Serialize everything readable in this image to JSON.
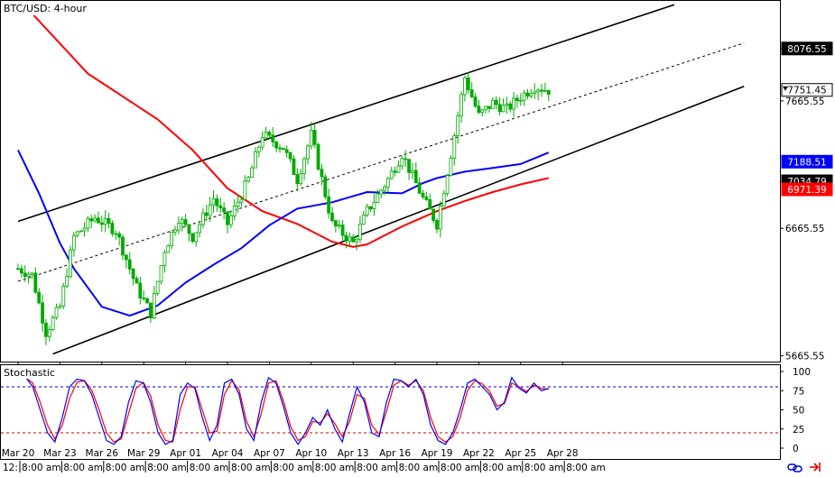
{
  "title": "BTC/USD: 4-hour",
  "indicator_title": "Stochastic",
  "footer": {
    "left_stub": "12:",
    "time_labels": [
      "8:00 am",
      "8:00 am",
      "8:00 am",
      "8:00 am",
      "8:00 am",
      "8:00 am",
      "8:00 am",
      "8:00 am",
      "8:00 am",
      "8:00 am",
      "8:00 am",
      "8:00 am",
      "8:00 am",
      "8:00 am"
    ]
  },
  "colors": {
    "candle": "#00aa00",
    "ma_red": "#ff0000",
    "ma_blue": "#0000ff",
    "channel": "#000000",
    "stoch_k": "#0000ff",
    "stoch_d": "#ff0000",
    "level_high": "#0000cc",
    "level_low": "#cc0000",
    "tag_dark": "#000000",
    "tag_blue": "#0000ff",
    "tag_red": "#ff0000"
  },
  "icons": [
    "link-icon",
    "arrow-to-end-icon"
  ],
  "chart_data": {
    "type": "candlestick",
    "symbol": "BTC/USD",
    "timeframe": "4-hour",
    "x_labels": [
      "Mar 20",
      "Mar 23",
      "Mar 26",
      "Mar 29",
      "Apr 01",
      "Apr 04",
      "Apr 07",
      "Apr 10",
      "Apr 13",
      "Apr 16",
      "Apr 19",
      "Apr 22",
      "Apr 25",
      "Apr 28"
    ],
    "y_ticks": [
      "8076.55",
      "7665.55",
      "6665.55",
      "5665.55"
    ],
    "ylim": [
      5620,
      8450
    ],
    "price_tags": [
      {
        "value": 8076.55,
        "text": "8076.55",
        "style": "dark"
      },
      {
        "value": 7751.45,
        "text": "7751.45",
        "style": "last"
      },
      {
        "value": 7188.51,
        "text": "7188.51",
        "style": "blue"
      },
      {
        "value": 7034.79,
        "text": "7034.79",
        "style": "dark"
      },
      {
        "value": 6971.39,
        "text": "6971.39",
        "style": "red"
      }
    ],
    "price_path": [
      [
        0,
        6350
      ],
      [
        2,
        6300
      ],
      [
        4,
        5850
      ],
      [
        6,
        6050
      ],
      [
        8,
        6600
      ],
      [
        11,
        6750
      ],
      [
        14,
        6650
      ],
      [
        17,
        6200
      ],
      [
        19,
        6000
      ],
      [
        21,
        6500
      ],
      [
        23,
        6750
      ],
      [
        25,
        6600
      ],
      [
        28,
        6900
      ],
      [
        30,
        6700
      ],
      [
        33,
        7050
      ],
      [
        35,
        7400
      ],
      [
        38,
        7300
      ],
      [
        40,
        7050
      ],
      [
        42,
        7400
      ],
      [
        45,
        6700
      ],
      [
        48,
        6550
      ],
      [
        50,
        6800
      ],
      [
        53,
        7050
      ],
      [
        55,
        7250
      ],
      [
        58,
        6900
      ],
      [
        60,
        6700
      ],
      [
        62,
        7250
      ],
      [
        64,
        7850
      ],
      [
        66,
        7550
      ],
      [
        68,
        7650
      ],
      [
        70,
        7600
      ],
      [
        72,
        7700
      ],
      [
        74,
        7780
      ],
      [
        76,
        7750
      ]
    ],
    "series": [
      {
        "name": "",
        "color": "red",
        "points": [
          [
            0,
            8470
          ],
          [
            10,
            7880
          ],
          [
            20,
            7520
          ],
          [
            25,
            7280
          ],
          [
            30,
            6980
          ],
          [
            35,
            6800
          ],
          [
            40,
            6700
          ],
          [
            45,
            6560
          ],
          [
            48,
            6520
          ],
          [
            50,
            6540
          ],
          [
            55,
            6680
          ],
          [
            60,
            6800
          ],
          [
            64,
            6880
          ],
          [
            68,
            6950
          ],
          [
            72,
            7010
          ],
          [
            76,
            7060
          ]
        ]
      },
      {
        "name": "",
        "color": "blue",
        "points": [
          [
            0,
            7280
          ],
          [
            3,
            6940
          ],
          [
            6,
            6550
          ],
          [
            8,
            6350
          ],
          [
            12,
            6050
          ],
          [
            16,
            5980
          ],
          [
            20,
            6060
          ],
          [
            24,
            6240
          ],
          [
            28,
            6380
          ],
          [
            32,
            6510
          ],
          [
            36,
            6690
          ],
          [
            40,
            6820
          ],
          [
            45,
            6870
          ],
          [
            50,
            6950
          ],
          [
            55,
            6940
          ],
          [
            58,
            7020
          ],
          [
            60,
            7060
          ],
          [
            64,
            7110
          ],
          [
            68,
            7140
          ],
          [
            72,
            7170
          ],
          [
            76,
            7260
          ]
        ]
      }
    ],
    "channel": {
      "upper": [
        [
          0,
          6720
        ],
        [
          94,
          8420
        ]
      ],
      "middle": [
        [
          0,
          6250
        ],
        [
          104,
          8120
        ]
      ],
      "lower": [
        [
          5,
          5680
        ],
        [
          104,
          7780
        ]
      ]
    },
    "stochastic": {
      "range": [
        0,
        100
      ],
      "y_ticks": [
        "100",
        "75",
        "50",
        "25",
        "0"
      ],
      "levels": [
        80,
        20
      ],
      "k": [
        [
          0,
          95
        ],
        [
          1,
          93
        ],
        [
          2,
          80
        ],
        [
          3,
          50
        ],
        [
          4,
          20
        ],
        [
          5,
          8
        ],
        [
          6,
          40
        ],
        [
          7,
          80
        ],
        [
          8,
          90
        ],
        [
          9,
          88
        ],
        [
          10,
          70
        ],
        [
          11,
          40
        ],
        [
          12,
          10
        ],
        [
          13,
          5
        ],
        [
          14,
          15
        ],
        [
          15,
          60
        ],
        [
          16,
          88
        ],
        [
          17,
          85
        ],
        [
          18,
          60
        ],
        [
          19,
          20
        ],
        [
          20,
          5
        ],
        [
          21,
          10
        ],
        [
          22,
          70
        ],
        [
          23,
          85
        ],
        [
          24,
          78
        ],
        [
          25,
          40
        ],
        [
          26,
          10
        ],
        [
          27,
          30
        ],
        [
          28,
          85
        ],
        [
          29,
          90
        ],
        [
          30,
          70
        ],
        [
          31,
          25
        ],
        [
          32,
          10
        ],
        [
          33,
          60
        ],
        [
          34,
          92
        ],
        [
          35,
          85
        ],
        [
          36,
          55
        ],
        [
          37,
          20
        ],
        [
          38,
          5
        ],
        [
          39,
          20
        ],
        [
          40,
          40
        ],
        [
          41,
          30
        ],
        [
          42,
          50
        ],
        [
          43,
          25
        ],
        [
          44,
          8
        ],
        [
          45,
          45
        ],
        [
          46,
          80
        ],
        [
          47,
          60
        ],
        [
          48,
          20
        ],
        [
          49,
          15
        ],
        [
          50,
          60
        ],
        [
          51,
          90
        ],
        [
          52,
          88
        ],
        [
          53,
          80
        ],
        [
          54,
          90
        ],
        [
          55,
          70
        ],
        [
          56,
          30
        ],
        [
          57,
          10
        ],
        [
          58,
          5
        ],
        [
          59,
          20
        ],
        [
          60,
          50
        ],
        [
          61,
          85
        ],
        [
          62,
          90
        ],
        [
          63,
          80
        ],
        [
          64,
          70
        ],
        [
          65,
          50
        ],
        [
          66,
          60
        ],
        [
          67,
          92
        ],
        [
          68,
          78
        ],
        [
          69,
          72
        ],
        [
          70,
          85
        ],
        [
          71,
          75
        ],
        [
          72,
          78
        ]
      ],
      "d": [
        [
          0,
          92
        ],
        [
          1,
          92
        ],
        [
          2,
          85
        ],
        [
          3,
          60
        ],
        [
          4,
          30
        ],
        [
          5,
          12
        ],
        [
          6,
          30
        ],
        [
          7,
          65
        ],
        [
          8,
          86
        ],
        [
          9,
          88
        ],
        [
          10,
          76
        ],
        [
          11,
          50
        ],
        [
          12,
          20
        ],
        [
          13,
          8
        ],
        [
          14,
          12
        ],
        [
          15,
          45
        ],
        [
          16,
          78
        ],
        [
          17,
          86
        ],
        [
          18,
          68
        ],
        [
          19,
          30
        ],
        [
          20,
          10
        ],
        [
          21,
          8
        ],
        [
          22,
          50
        ],
        [
          23,
          80
        ],
        [
          24,
          80
        ],
        [
          25,
          50
        ],
        [
          26,
          20
        ],
        [
          27,
          22
        ],
        [
          28,
          70
        ],
        [
          29,
          88
        ],
        [
          30,
          76
        ],
        [
          31,
          35
        ],
        [
          32,
          15
        ],
        [
          33,
          45
        ],
        [
          34,
          85
        ],
        [
          35,
          88
        ],
        [
          36,
          62
        ],
        [
          37,
          28
        ],
        [
          38,
          10
        ],
        [
          39,
          15
        ],
        [
          40,
          35
        ],
        [
          41,
          33
        ],
        [
          42,
          45
        ],
        [
          43,
          32
        ],
        [
          44,
          15
        ],
        [
          45,
          35
        ],
        [
          46,
          70
        ],
        [
          47,
          65
        ],
        [
          48,
          30
        ],
        [
          49,
          18
        ],
        [
          50,
          48
        ],
        [
          51,
          82
        ],
        [
          52,
          88
        ],
        [
          53,
          82
        ],
        [
          54,
          88
        ],
        [
          55,
          75
        ],
        [
          56,
          40
        ],
        [
          57,
          15
        ],
        [
          58,
          8
        ],
        [
          59,
          15
        ],
        [
          60,
          40
        ],
        [
          61,
          75
        ],
        [
          62,
          88
        ],
        [
          63,
          84
        ],
        [
          64,
          74
        ],
        [
          65,
          55
        ],
        [
          66,
          58
        ],
        [
          67,
          85
        ],
        [
          68,
          80
        ],
        [
          69,
          74
        ],
        [
          70,
          82
        ],
        [
          71,
          78
        ],
        [
          72,
          77
        ]
      ]
    }
  }
}
